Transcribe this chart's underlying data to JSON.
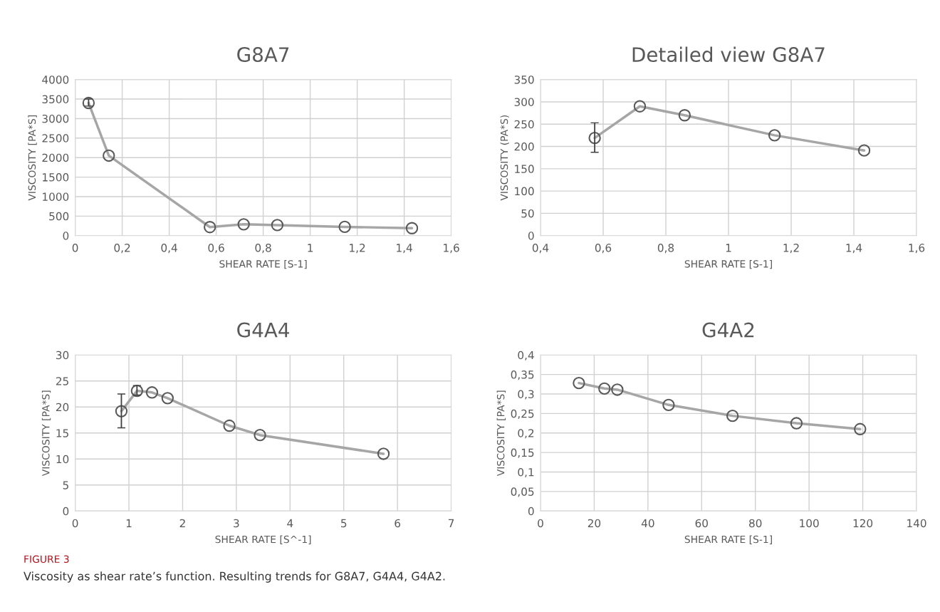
{
  "chart_data": [
    {
      "type": "line",
      "title": "G8A7",
      "xlabel": "SHEAR RATE [S-1]",
      "ylabel": "VISCOSITY [PA*S]",
      "marker": "circle",
      "grid": true,
      "x": [
        0.057,
        0.143,
        0.573,
        0.717,
        0.86,
        1.147,
        1.433
      ],
      "series": [
        {
          "color": "#a6a6a6",
          "values": [
            3400,
            2050,
            219,
            290,
            270,
            225,
            191
          ],
          "errors": [
            [
              3320,
              3500
            ],
            null,
            null,
            null,
            null,
            null,
            null
          ]
        }
      ],
      "xlim": [
        0,
        1.6
      ],
      "xticks": [
        0,
        {
          "value": 0.2,
          "label": "0,2"
        },
        {
          "value": 0.4,
          "label": "0,4"
        },
        {
          "value": 0.6,
          "label": "0,6"
        },
        {
          "value": 0.8,
          "label": "0,8"
        },
        1,
        {
          "value": 1.2,
          "label": "1,2"
        },
        {
          "value": 1.4,
          "label": "1,4"
        },
        {
          "value": 1.6,
          "label": "1,6"
        }
      ],
      "ylim": [
        0,
        4000
      ],
      "yticks": [
        0,
        500,
        1000,
        1500,
        2000,
        2500,
        3000,
        3500,
        4000
      ]
    },
    {
      "type": "line",
      "title": "Detailed view G8A7",
      "xlabel": "SHEAR RATE [S-1]",
      "ylabel": "VISCOSITY (PA*S)",
      "marker": "circle",
      "grid": true,
      "x": [
        0.573,
        0.717,
        0.86,
        1.147,
        1.433
      ],
      "series": [
        {
          "color": "#a6a6a6",
          "values": [
            219,
            290,
            270,
            225,
            191
          ],
          "errors": [
            [
              187,
              253
            ],
            null,
            null,
            null,
            null
          ]
        }
      ],
      "xlim": [
        0.4,
        1.6
      ],
      "xticks": [
        {
          "value": 0.4,
          "label": "0,4"
        },
        {
          "value": 0.6,
          "label": "0,6"
        },
        {
          "value": 0.8,
          "label": "0,8"
        },
        1,
        {
          "value": 1.2,
          "label": "1,2"
        },
        {
          "value": 1.4,
          "label": "1,4"
        },
        {
          "value": 1.6,
          "label": "1,6"
        }
      ],
      "ylim": [
        0,
        350
      ],
      "yticks": [
        0,
        50,
        100,
        150,
        200,
        250,
        300,
        350
      ]
    },
    {
      "type": "line",
      "title": "G4A4",
      "xlabel": "SHEAR RATE [S^-1]",
      "ylabel": "VISCOSITY [PA*S]",
      "marker": "circle",
      "grid": true,
      "x": [
        0.86,
        1.15,
        1.43,
        1.72,
        2.87,
        3.44,
        5.74
      ],
      "series": [
        {
          "color": "#a6a6a6",
          "values": [
            19.2,
            23.1,
            22.8,
            21.7,
            16.4,
            14.6,
            11.0
          ],
          "errors": [
            [
              16.0,
              22.5
            ],
            [
              22.3,
              24.1
            ],
            null,
            null,
            null,
            null,
            null
          ]
        }
      ],
      "xlim": [
        0,
        7
      ],
      "xticks": [
        0,
        1,
        2,
        3,
        4,
        5,
        6,
        7
      ],
      "ylim": [
        0,
        30
      ],
      "yticks": [
        0,
        5,
        10,
        15,
        20,
        25,
        30
      ]
    },
    {
      "type": "line",
      "title": "G4A2",
      "xlabel": "SHEAR RATE [S-1]",
      "ylabel": "VISCOSITY [PA*S]",
      "marker": "circle",
      "grid": true,
      "x": [
        14.3,
        23.8,
        28.6,
        47.7,
        71.5,
        95.3,
        119
      ],
      "series": [
        {
          "color": "#a6a6a6",
          "values": [
            0.328,
            0.314,
            0.311,
            0.272,
            0.244,
            0.225,
            0.21
          ]
        }
      ],
      "xlim": [
        0,
        140
      ],
      "xticks": [
        0,
        20,
        40,
        60,
        80,
        100,
        120,
        140
      ],
      "ylim": [
        0,
        0.4
      ],
      "yticks": [
        0,
        {
          "value": 0.05,
          "label": "0,05"
        },
        {
          "value": 0.1,
          "label": "0,1"
        },
        {
          "value": 0.15,
          "label": "0,15"
        },
        {
          "value": 0.2,
          "label": "0,2"
        },
        {
          "value": 0.25,
          "label": "0,25"
        },
        {
          "value": 0.3,
          "label": "0,3"
        },
        {
          "value": 0.35,
          "label": "0,35"
        },
        {
          "value": 0.4,
          "label": "0,4"
        }
      ],
      "annotations": [
        "FIGURE 3",
        "Viscosity as shear rate’s function. Resulting trends for G8A7, G4A4, G4A2."
      ]
    }
  ]
}
